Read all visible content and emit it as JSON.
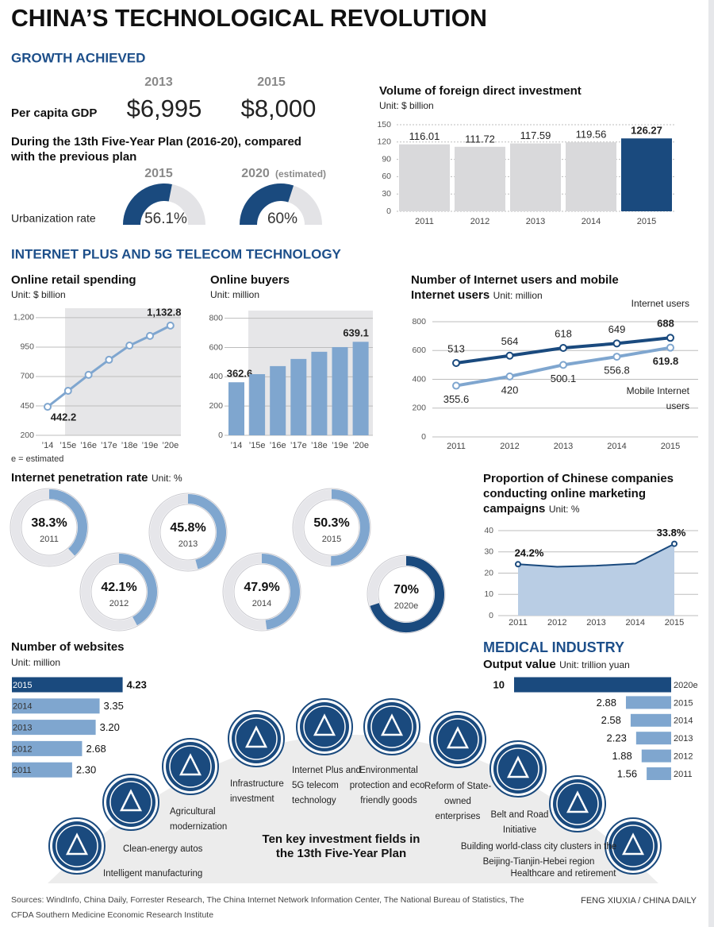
{
  "title": "CHINA’S TECHNOLOGICAL REVOLUTION",
  "growth_section": "GROWTH ACHIEVED",
  "gdp": {
    "label": "Per capita GDP",
    "years": [
      "2013",
      "2015"
    ],
    "values": [
      "$6,995",
      "$8,000"
    ]
  },
  "internet_section": "INTERNET PLUS AND 5G TELECOM TECHNOLOGY",
  "medical_section": "MEDICAL INDUSTRY",
  "estimate_note": "e = estimated",
  "chart_data": [
    {
      "type": "gauge",
      "title": "During the 13th Five-Year Plan (2016-20), compared with the previous plan",
      "label": "Urbanization rate",
      "categories": [
        "2015",
        "2020"
      ],
      "estimated_label": "(estimated)",
      "values": [
        56.1,
        60
      ],
      "value_labels": [
        "56.1%",
        "60%"
      ],
      "ylim": [
        0,
        100
      ],
      "color": "#1a4a7e",
      "track_color": "#e3e3e6"
    },
    {
      "type": "bar",
      "title": "Volume of foreign direct investment",
      "unit": "Unit: $ billion",
      "categories": [
        "2011",
        "2012",
        "2013",
        "2014",
        "2015"
      ],
      "values": [
        116.01,
        111.72,
        117.59,
        119.56,
        126.27
      ],
      "colors": [
        "#d9d9db",
        "#d9d9db",
        "#d9d9db",
        "#d9d9db",
        "#1a4a7e"
      ],
      "ylim": [
        0,
        150
      ],
      "yticks": [
        0,
        30,
        60,
        90,
        120,
        150
      ],
      "grid": true
    },
    {
      "type": "line",
      "title": "Online retail spending",
      "unit": "Unit: $ billion",
      "categories": [
        "’14",
        "’15e",
        "’16e",
        "’17e",
        "’18e",
        "’19e",
        "’20e"
      ],
      "values": [
        442.2,
        578,
        714,
        842,
        963,
        1045,
        1132.8
      ],
      "value_labels": [
        "442.2",
        null,
        null,
        null,
        null,
        null,
        "1,132.8"
      ],
      "color": "#7fa6cf",
      "ylim": [
        200,
        1240
      ],
      "yticks": [
        200,
        450,
        700,
        950,
        {
          "value": 1200,
          "label": "1,200"
        }
      ],
      "grid": true
    },
    {
      "type": "bar",
      "title": "Online buyers",
      "unit": "Unit: million",
      "categories": [
        "’14",
        "’15e",
        "’16e",
        "’17e",
        "’18e",
        "’19e",
        "’20e"
      ],
      "values": [
        362.6,
        418,
        473,
        522,
        571,
        603,
        639.1
      ],
      "value_labels": [
        "362.6",
        null,
        null,
        null,
        null,
        null,
        "639.1"
      ],
      "color": "#7fa6cf",
      "ylim": [
        0,
        820
      ],
      "yticks": [
        0,
        200,
        400,
        600,
        800
      ],
      "grid": true
    },
    {
      "type": "line",
      "title": "Number of Internet users and mobile Internet users",
      "unit": "Unit: million",
      "categories": [
        "2011",
        "2012",
        "2013",
        "2014",
        "2015"
      ],
      "series": [
        {
          "name": "Internet users",
          "color": "#1a4a7e",
          "values": [
            513,
            564,
            618,
            649,
            688
          ]
        },
        {
          "name": "Mobile Internet users",
          "color": "#7fa6cf",
          "values": [
            355.6,
            420,
            500.1,
            556.8,
            619.8
          ]
        }
      ],
      "ylim": [
        0,
        800
      ],
      "yticks": [
        0,
        200,
        400,
        600,
        800
      ],
      "grid": true
    },
    {
      "type": "donut",
      "title": "Internet penetration rate",
      "unit": "Unit: %",
      "categories": [
        "2011",
        "2012",
        "2013",
        "2014",
        "2015",
        "2020e"
      ],
      "values": [
        38.3,
        42.1,
        45.8,
        47.9,
        50.3,
        70
      ],
      "value_labels": [
        "38.3%",
        "42.1%",
        "45.8%",
        "47.9%",
        "50.3%",
        "70%"
      ],
      "colors": [
        "#7fa6cf",
        "#7fa6cf",
        "#7fa6cf",
        "#7fa6cf",
        "#7fa6cf",
        "#1a4a7e"
      ],
      "ylim": [
        0,
        100
      ]
    },
    {
      "type": "area",
      "title": "Proportion of Chinese companies conducting online marketing campaigns",
      "unit": "Unit: %",
      "categories": [
        "2011",
        "2012",
        "2013",
        "2014",
        "2015"
      ],
      "values": [
        24.2,
        23,
        23.5,
        24.5,
        33.8
      ],
      "value_labels": [
        "24.2%",
        null,
        null,
        null,
        "33.8%"
      ],
      "color": "#1a4a7e",
      "area_color": "#b9cde4",
      "ylim": [
        0,
        43
      ],
      "yticks": [
        0,
        10,
        20,
        30,
        40
      ],
      "grid": true
    },
    {
      "type": "hbar",
      "title": "Number of websites",
      "unit": "Unit: million",
      "categories": [
        "2015",
        "2014",
        "2013",
        "2012",
        "2011"
      ],
      "values": [
        4.23,
        3.35,
        3.2,
        2.68,
        2.3
      ],
      "value_labels": [
        "4.23",
        "3.35",
        "3.20",
        "2.68",
        "2.30"
      ],
      "colors": [
        "#1a4a7e",
        "#7fa6cf",
        "#7fa6cf",
        "#7fa6cf",
        "#7fa6cf"
      ]
    },
    {
      "type": "hbar",
      "title": "Output value",
      "unit": "Unit: trillion yuan",
      "categories": [
        "2020e",
        "2015",
        "2014",
        "2013",
        "2012",
        "2011"
      ],
      "values": [
        10,
        2.88,
        2.58,
        2.23,
        1.88,
        1.56
      ],
      "colors": [
        "#1a4a7e",
        "#7fa6cf",
        "#7fa6cf",
        "#7fa6cf",
        "#7fa6cf",
        "#7fa6cf"
      ]
    }
  ],
  "investment_fields": {
    "title": "Ten key investment fields in the 13th Five-Year Plan",
    "items": [
      "Intelligent manufacturing",
      "Clean-energy autos",
      "Agricultural modernization",
      "Infrastructure investment",
      "Internet Plus and 5G telecom technology",
      "Environmental protection and eco-friendly goods",
      "Reform of State-owned enterprises",
      "Belt and Road Initiative",
      "Building world-class city clusters in the Beijing-Tianjin-Hebei region",
      "Healthcare and retirement"
    ]
  },
  "sources": "Sources: WindInfo, China Daily, Forrester Research, The China Internet Network Information Center, The National Bureau of Statistics, The CFDA Southern Medicine Economic Research Institute",
  "credit": "FENG XIUXIA / CHINA DAILY"
}
